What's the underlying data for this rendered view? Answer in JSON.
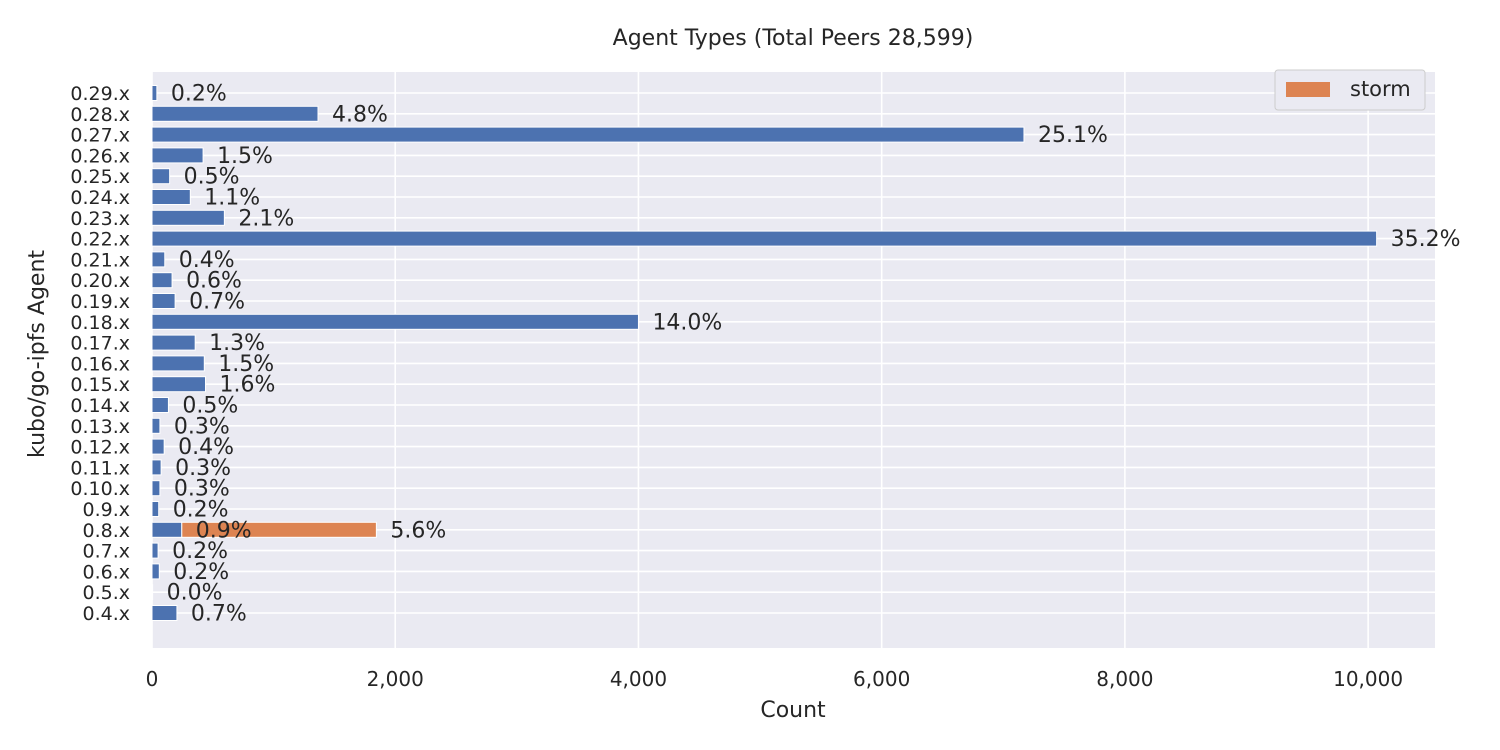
{
  "chart_data": {
    "type": "bar",
    "orientation": "horizontal",
    "title": "Agent Types (Total Peers 28,599)",
    "xlabel": "Count",
    "ylabel": "kubo/go-ipfs Agent",
    "xlim": [
      0,
      10550
    ],
    "xticks": [
      0,
      2000,
      4000,
      6000,
      8000,
      10000
    ],
    "xtick_labels": [
      "0",
      "2,000",
      "4,000",
      "6,000",
      "8,000",
      "10,000"
    ],
    "grid": true,
    "legend_position": "top-right",
    "categories": [
      "0.29.x",
      "0.28.x",
      "0.27.x",
      "0.26.x",
      "0.25.x",
      "0.24.x",
      "0.23.x",
      "0.22.x",
      "0.21.x",
      "0.20.x",
      "0.19.x",
      "0.18.x",
      "0.17.x",
      "0.16.x",
      "0.15.x",
      "0.14.x",
      "0.13.x",
      "0.12.x",
      "0.11.x",
      "0.10.x",
      "0.9.x",
      "0.8.x",
      "0.7.x",
      "0.6.x",
      "0.5.x",
      "0.4.x"
    ],
    "series": [
      {
        "color": "#4c72b0",
        "values": [
          40,
          1365,
          7170,
          420,
          145,
          315,
          595,
          10070,
          105,
          165,
          190,
          4000,
          355,
          430,
          440,
          135,
          65,
          100,
          75,
          65,
          55,
          245,
          50,
          60,
          5,
          205
        ],
        "labels": [
          "0.2%",
          "4.8%",
          "25.1%",
          "1.5%",
          "0.5%",
          "1.1%",
          "2.1%",
          "35.2%",
          "0.4%",
          "0.6%",
          "0.7%",
          "14.0%",
          "1.3%",
          "1.5%",
          "1.6%",
          "0.5%",
          "0.3%",
          "0.4%",
          "0.3%",
          "0.3%",
          "0.2%",
          "0.9%",
          "0.2%",
          "0.2%",
          "0.0%",
          "0.7%"
        ]
      },
      {
        "name": "storm",
        "color": "#dd8452",
        "stacked_on": 0,
        "values": [
          0,
          0,
          0,
          0,
          0,
          0,
          0,
          0,
          0,
          0,
          0,
          0,
          0,
          0,
          0,
          0,
          0,
          0,
          0,
          0,
          0,
          1600,
          0,
          0,
          0,
          0
        ],
        "labels": [
          "",
          "",
          "",
          "",
          "",
          "",
          "",
          "",
          "",
          "",
          "",
          "",
          "",
          "",
          "",
          "",
          "",
          "",
          "",
          "",
          "",
          "5.6%",
          "",
          "",
          "",
          ""
        ]
      }
    ]
  }
}
